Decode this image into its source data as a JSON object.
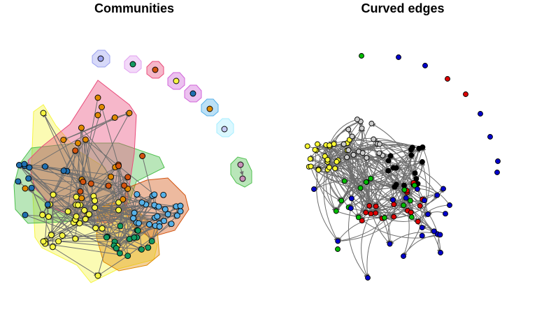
{
  "panels": [
    {
      "id": "communities",
      "title": "Communities"
    },
    {
      "id": "curved",
      "title": "Curved edges"
    }
  ],
  "colors": {
    "edge": "#6e6e6e",
    "yellow": "#f5f542",
    "orange": "#e08a00",
    "darkorange": "#d2530f",
    "blue": "#1f6fb0",
    "skyblue": "#56b1e8",
    "green": "#139a62",
    "lightgreen": "#4fc04f",
    "lavender": "#9aa0f0",
    "pink": "#e94a7a",
    "violet": "#e2a0f0",
    "magenta": "#d064d9",
    "purple": "#c3c9f3",
    "cyan": "#a5eeff",
    "mint": "#c790b8",
    "net_yellow": "#ffff33",
    "net_black": "#000000",
    "net_gray": "#cccccc",
    "net_green": "#00bb00",
    "net_red": "#dd0000",
    "net_blue": "#0000cc"
  }
}
